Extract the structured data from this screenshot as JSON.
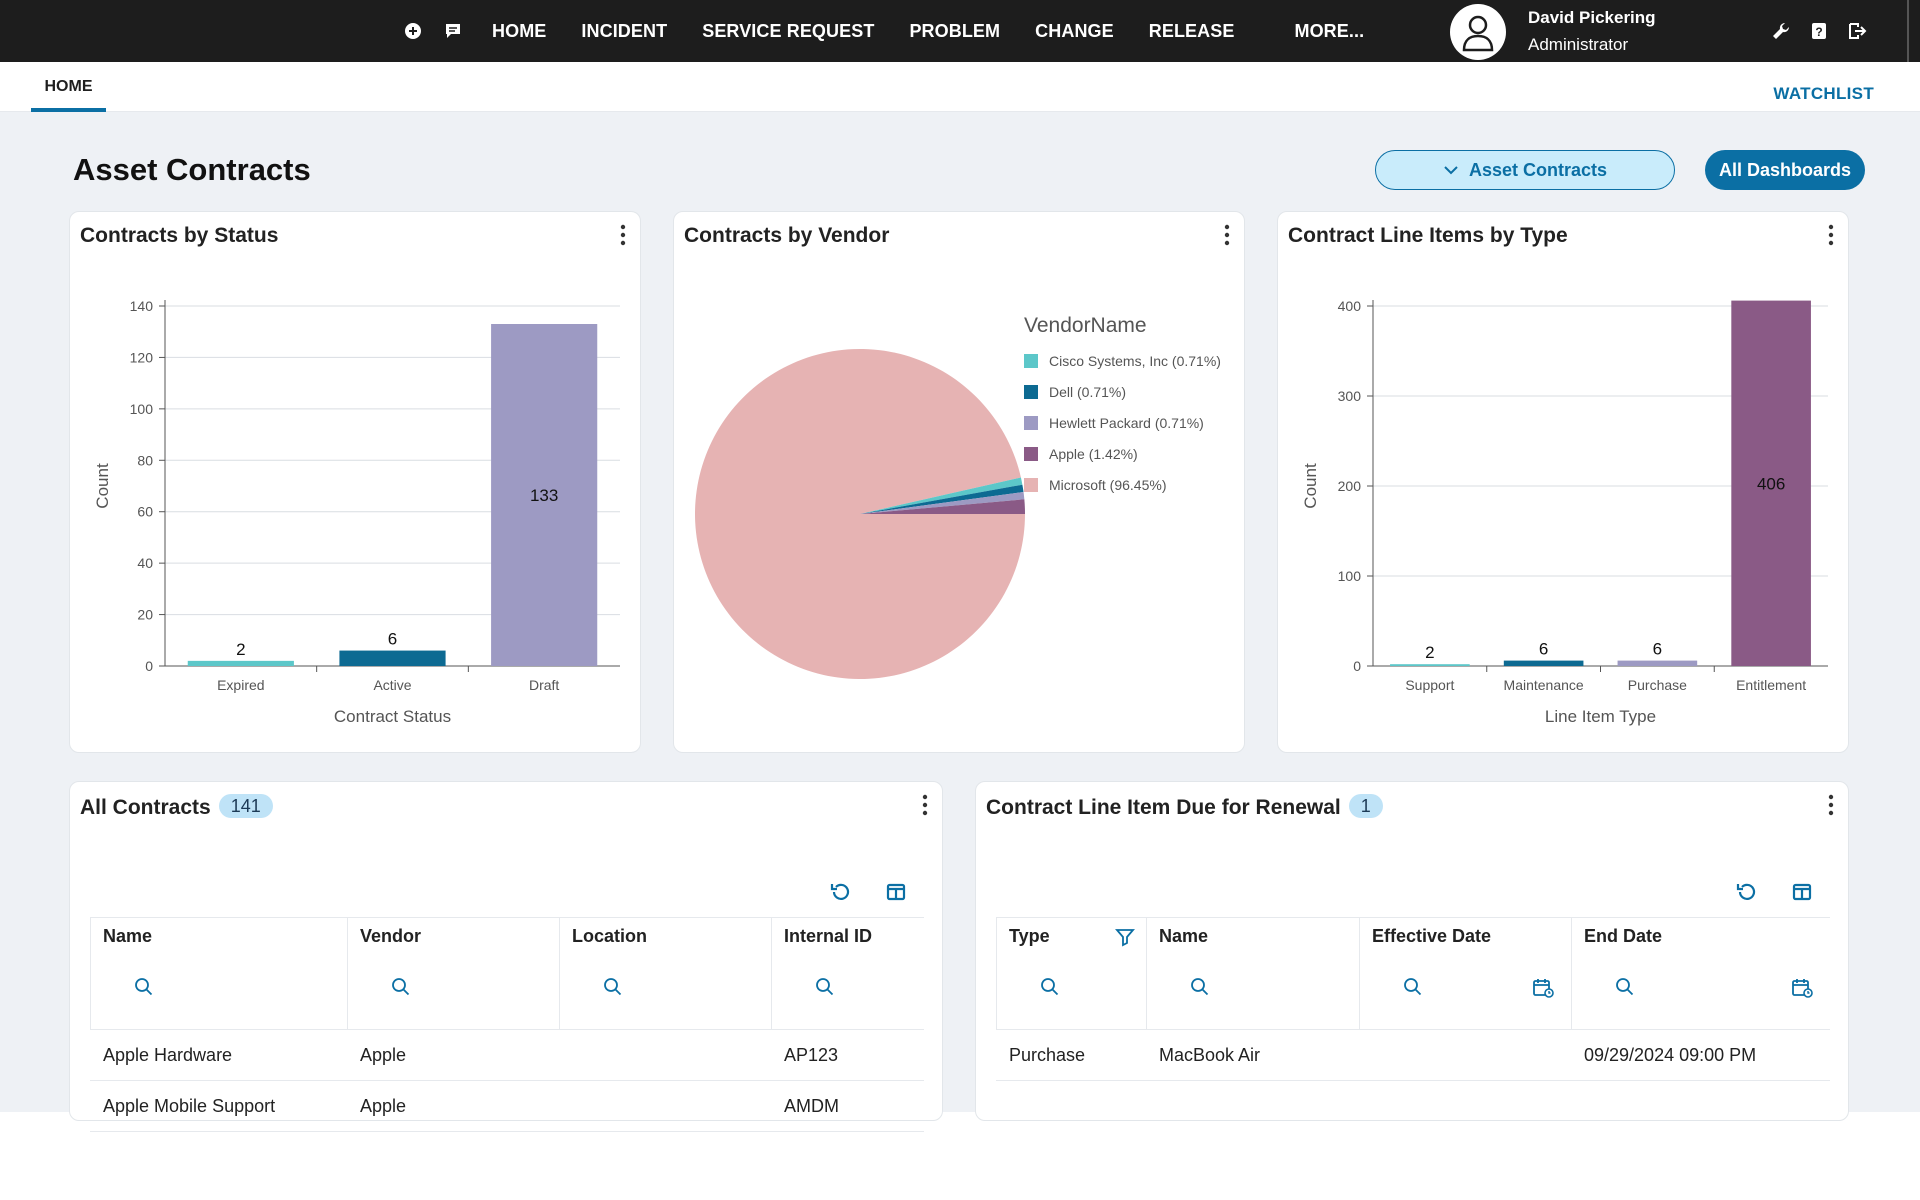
{
  "topbar": {
    "nav": [
      "HOME",
      "INCIDENT",
      "SERVICE REQUEST",
      "PROBLEM",
      "CHANGE",
      "RELEASE"
    ],
    "more": "MORE...",
    "user_name": "David Pickering",
    "user_role": "Administrator"
  },
  "subbar": {
    "tab": "HOME",
    "watchlist": "WATCHLIST"
  },
  "page": {
    "title": "Asset Contracts",
    "dashboard_select": "Asset Contracts",
    "all_dashboards": "All Dashboards"
  },
  "cards": {
    "status_title": "Contracts by Status",
    "vendor_title": "Contracts by Vendor",
    "types_title": "Contract Line Items by Type",
    "all_contracts_title": "All Contracts",
    "all_contracts_count": "141",
    "renewal_title": "Contract Line Item Due for Renewal",
    "renewal_count": "1"
  },
  "colors": {
    "teal": "#5cc7c9",
    "blue": "#0d6a92",
    "lavender": "#9d9ac3",
    "purple": "#8a5a86",
    "pink": "#e6b3b3",
    "accent": "#0b6fa4"
  },
  "chart_data": [
    {
      "type": "bar",
      "title": "Contracts by Status",
      "categories": [
        "Expired",
        "Active",
        "Draft"
      ],
      "values": [
        2,
        6,
        133
      ],
      "data_labels": [
        "2",
        "6",
        "133"
      ],
      "xlabel": "Contract Status",
      "ylabel": "Count",
      "ylim": [
        0,
        140
      ],
      "yticks": [
        0,
        20,
        40,
        60,
        80,
        100,
        120,
        140
      ],
      "colors": [
        "#5cc7c9",
        "#0d6a92",
        "#9d9ac3"
      ],
      "grid": true
    },
    {
      "type": "pie",
      "title": "Contracts by Vendor",
      "legend_title": "VendorName",
      "legend_position": "right",
      "labels": [
        "Cisco Systems, Inc (0.71%)",
        "Dell (0.71%)",
        "Hewlett Packard (0.71%)",
        "Apple (1.42%)",
        "Microsoft (96.45%)"
      ],
      "values": [
        0.71,
        0.71,
        0.71,
        1.42,
        96.45
      ],
      "colors": [
        "#5cc7c9",
        "#0d6a92",
        "#9d9ac3",
        "#8a5a86",
        "#e6b3b3"
      ]
    },
    {
      "type": "bar",
      "title": "Contract Line Items by Type",
      "categories": [
        "Support",
        "Maintenance",
        "Purchase",
        "Entitlement"
      ],
      "values": [
        2,
        6,
        6,
        406
      ],
      "data_labels": [
        "2",
        "6",
        "6",
        "406"
      ],
      "xlabel": "Line Item Type",
      "ylabel": "Count",
      "ylim": [
        0,
        400
      ],
      "yticks": [
        0,
        100,
        200,
        300,
        400
      ],
      "colors": [
        "#5cc7c9",
        "#0d6a92",
        "#9d9ac3",
        "#8a5a86"
      ],
      "grid": true
    }
  ],
  "all_contracts": {
    "columns": [
      "Name",
      "Vendor",
      "Location",
      "Internal ID"
    ],
    "rows": [
      [
        "Apple Hardware",
        "Apple",
        "",
        "AP123"
      ],
      [
        "Apple Mobile Support",
        "Apple",
        "",
        "AMDM"
      ]
    ]
  },
  "renewal": {
    "columns": [
      "Type",
      "Name",
      "Effective Date",
      "End Date"
    ],
    "rows": [
      [
        "Purchase",
        "MacBook Air",
        "",
        "09/29/2024 09:00 PM"
      ]
    ]
  }
}
